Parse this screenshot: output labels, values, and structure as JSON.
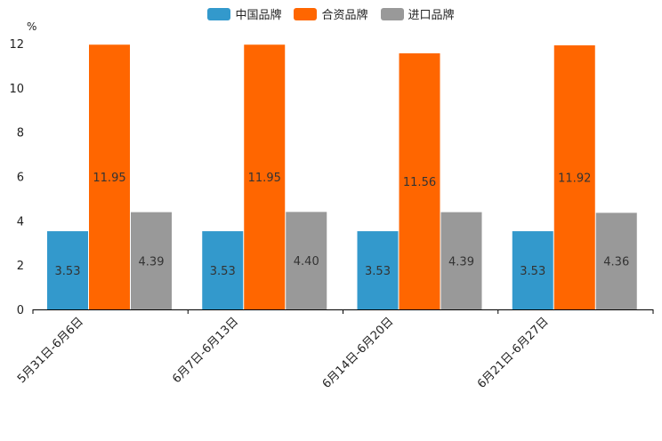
{
  "chart_data": {
    "type": "bar",
    "title": "",
    "ylabel": "%",
    "xlabel": "",
    "ylim": [
      0,
      12
    ],
    "yticks": [
      0,
      2,
      4,
      6,
      8,
      10,
      12
    ],
    "categories": [
      "5月31日-6月6日",
      "6月7日-6月13日",
      "6月14日-6月20日",
      "6月21日-6月27日"
    ],
    "series": [
      {
        "name": "中国品牌",
        "color": "#3399cc",
        "values": [
          3.53,
          3.53,
          3.53,
          3.53
        ],
        "labels": [
          "3.53",
          "3.53",
          "3.53",
          "3.53"
        ]
      },
      {
        "name": "合资品牌",
        "color": "#ff6600",
        "values": [
          11.95,
          11.95,
          11.56,
          11.92
        ],
        "labels": [
          "11.95",
          "11.95",
          "11.56",
          "11.92"
        ]
      },
      {
        "name": "进口品牌",
        "color": "#999999",
        "values": [
          4.39,
          4.4,
          4.39,
          4.36
        ],
        "labels": [
          "4.39",
          "4.40",
          "4.39",
          "4.36"
        ]
      }
    ],
    "legend_position": "top-center",
    "grid": false
  }
}
